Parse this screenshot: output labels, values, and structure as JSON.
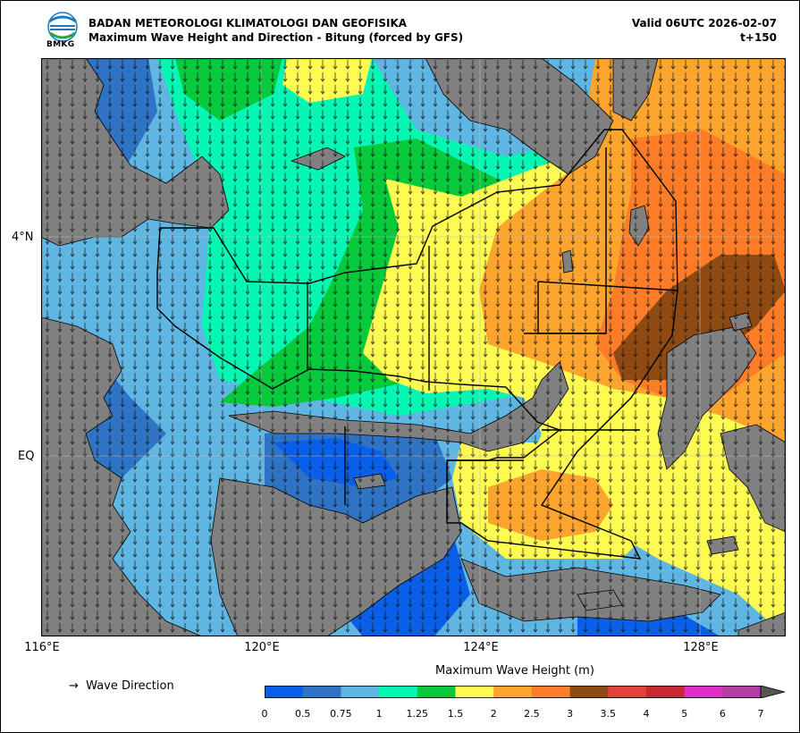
{
  "header": {
    "agency": "BADAN METEOROLOGI KLIMATOLOGI DAN GEOFISIKA",
    "product": "Maximum Wave Height and Direction - Bitung (forced by GFS)",
    "valid": "Valid 06UTC 2026-02-07",
    "lead_time": "t+150",
    "logo_text": "BMKG"
  },
  "axes": {
    "lat_labels": [
      "4°N",
      "EQ"
    ],
    "lon_labels": [
      "116°E",
      "120°E",
      "124°E",
      "128°E"
    ]
  },
  "legend": {
    "arrow_glyph": "→",
    "arrow_label": "Wave Direction"
  },
  "colorbar": {
    "title": "Maximum Wave Height (m)",
    "ticks": [
      "0",
      "0.5",
      "0.75",
      "1",
      "1.25",
      "1.5",
      "2",
      "2.5",
      "3",
      "3.5",
      "4",
      "5",
      "6",
      "7"
    ],
    "colors": [
      "#0a5fe8",
      "#2e73c4",
      "#5fb6e3",
      "#06f7b4",
      "#07c93c",
      "#fdfb52",
      "#fda42f",
      "#fd7c28",
      "#8f4a14",
      "#e4413a",
      "#c52a33",
      "#e02fc7",
      "#b03ea4"
    ],
    "extend_color": "#555555"
  },
  "map": {
    "land_color": "#808080",
    "palette": {
      "blue": "#0a5fe8",
      "mid": "#2e73c4",
      "light": "#5fb6e3",
      "aqua": "#06f7b4",
      "green": "#07c93c",
      "yellow": "#fdfb52",
      "lorange": "#fda42f",
      "orange": "#fd7c28",
      "brown": "#8f4a14"
    }
  }
}
